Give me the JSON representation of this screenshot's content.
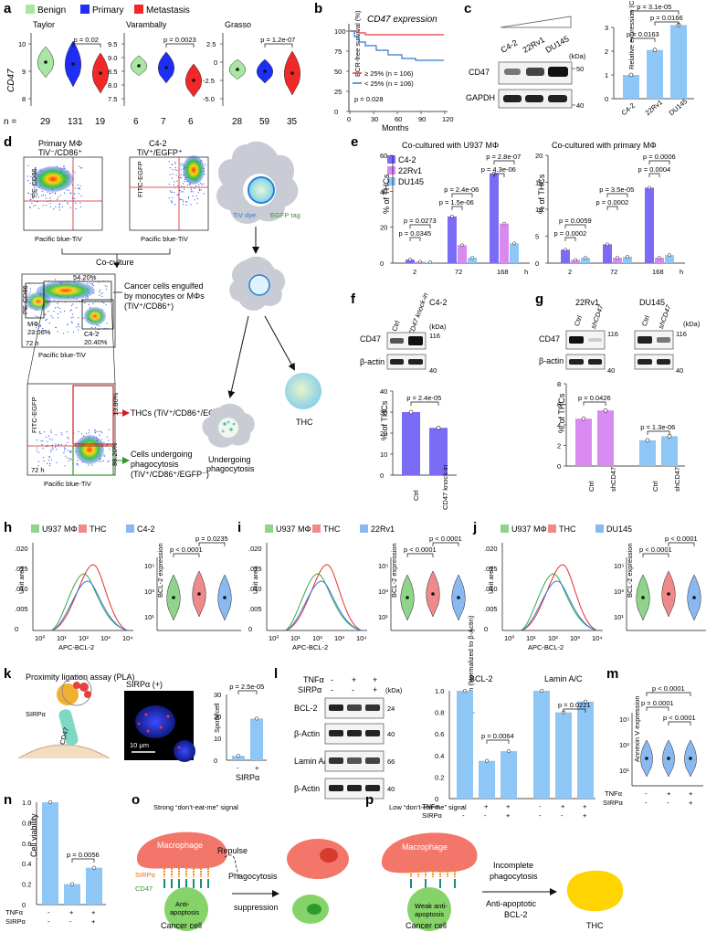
{
  "panels": {
    "a": {
      "label": "a",
      "legend": [
        "Benign",
        "Primary",
        "Metastasis"
      ],
      "ylabel": "CD47",
      "n_label": "n =",
      "datasets": [
        {
          "name": "Taylor",
          "p": "p = 0.02",
          "n": [
            "29",
            "131",
            "19"
          ],
          "yticks": [
            "10",
            "9",
            "8"
          ]
        },
        {
          "name": "Varambally",
          "p": "p = 0.0023",
          "n": [
            "6",
            "7",
            "6"
          ],
          "yticks": [
            "9.5",
            "9.0",
            "8.5",
            "8.0",
            "7.5"
          ]
        },
        {
          "name": "Grasso",
          "p": "p = 1.2e-07",
          "n": [
            "28",
            "59",
            "35"
          ],
          "yticks": [
            "2.5",
            "0",
            "-2.5",
            "-5.0"
          ]
        }
      ]
    },
    "b": {
      "label": "b",
      "title": "CD47 expression",
      "ylabel": "BCR-free survival (%)",
      "xlabel": "Months",
      "yticks": [
        "100",
        "75",
        "50",
        "25",
        "0"
      ],
      "xticks": [
        "0",
        "30",
        "60",
        "90",
        "120"
      ],
      "legend_high": "≥ 25% (n = 106)",
      "legend_low": "< 25% (n = 106)",
      "p": "p = 0.028"
    },
    "c": {
      "label": "c",
      "lanes": [
        "C4-2",
        "22Rv1",
        "DU145"
      ],
      "kda": "(kDa)",
      "blots": [
        "CD47",
        "GAPDH"
      ],
      "mw": [
        "50",
        "40"
      ],
      "ylabel": "Relative expression (CD47/GAPDH)",
      "yticks": [
        "3",
        "2",
        "1",
        "0"
      ],
      "p_top": "p = 3.1e-05",
      "p_mid": "p = 0.0166",
      "p_low": "p = 0.0163"
    },
    "d": {
      "label": "d",
      "plot1_title1": "Primary MΦ",
      "plot1_title2": "TiV⁻/CD86⁺",
      "plot2_title1": "C4-2",
      "plot2_title2": "TiV⁺/EGFP⁺",
      "y_pe": "PE-CD86",
      "y_fitc": "FITC-EGFP",
      "x_pb": "Pacific blue-TiV",
      "coculture": "Co-culture",
      "gate_top": "54.20%",
      "gate_mphi": "MΦ",
      "gate_mphi_pct": "23.06%",
      "gate_c42": "C4-2",
      "gate_c42_pct": "20.40%",
      "time": "72 h",
      "engulf_text": [
        "Cancer cells engulfed",
        "by monocytes or MΦs",
        "(TiV⁺/CD86⁺)"
      ],
      "q_top": "13.80%",
      "q_bot": "86.20%",
      "thc_text": "THCs (TiV⁺/CD86⁺/EGFP⁺)",
      "phago_text": [
        "Cells undergoing",
        "phagocytosis",
        "(TiV⁺/CD86⁺/EGFP⁻)"
      ],
      "tiv_dye": "TiV dye",
      "egfp_tag": "EGFP tag",
      "thc": "THC",
      "undergoing": [
        "Undergoing",
        "phagocytosis"
      ]
    },
    "e": {
      "label": "e",
      "left_title": "Co-cultured with U937 MΦ",
      "right_title": "Co-cultured with primary MΦ",
      "legend": [
        "C4-2",
        "22Rv1",
        "DU145"
      ],
      "ylabel": "% of THCs",
      "left_yticks": [
        "60",
        "40",
        "20",
        "0"
      ],
      "right_yticks": [
        "20",
        "15",
        "10",
        "5",
        "0"
      ],
      "xticks": [
        "2",
        "72",
        "168"
      ],
      "unit": "h",
      "left_p": [
        "p = 0.0273",
        "p = 0.0345",
        "p = 2.4e-06",
        "p = 1.5e-06",
        "p = 2.8e-07",
        "p = 4.3e-06"
      ],
      "right_p": [
        "p = 0.0059",
        "p = 0.0002",
        "p = 3.5e-05",
        "p = 0.0002",
        "p = 0.0006",
        "p = 0.0004"
      ]
    },
    "f": {
      "label": "f",
      "title": "C4-2",
      "lanes": [
        "Ctrl",
        "CD47 knock-in"
      ],
      "kda": "(kDa)",
      "blots": [
        "CD47",
        "β-actin"
      ],
      "mw": [
        "116",
        "40"
      ],
      "ylabel": "% of THCs",
      "yticks": [
        "40",
        "30",
        "20",
        "10",
        "0"
      ],
      "p": "p = 2.4e-05",
      "xlabels": [
        "Ctrl",
        "CD47 knock-in"
      ]
    },
    "g": {
      "label": "g",
      "title1": "22Rv1",
      "title2": "DU145",
      "lanes": [
        "Ctrl",
        "shCD47"
      ],
      "kda": "(kDa)",
      "blots": [
        "CD47",
        "β-actin"
      ],
      "mw": [
        "116",
        "40"
      ],
      "ylabel": "% of THCs",
      "yticks": [
        "8",
        "6",
        "4",
        "2",
        "0"
      ],
      "p1": "p = 0.0426",
      "p2": "p = 1.3e-06",
      "xlabels": [
        "Ctrl",
        "shCD47",
        "Ctrl",
        "shCD47"
      ]
    },
    "h": {
      "label": "h",
      "legend": [
        "U937 MΦ",
        "THC",
        "C4-2"
      ],
      "p1": "p < 0.0001",
      "p2": "p = 0.0235"
    },
    "i": {
      "label": "i",
      "legend": [
        "U937 MΦ",
        "THC",
        "22Rv1"
      ],
      "p1": "p < 0.0001",
      "p2": "p < 0.0001"
    },
    "j": {
      "label": "j",
      "legend": [
        "U937 MΦ",
        "THC",
        "DU145"
      ],
      "p1": "p < 0.0001",
      "p2": "p < 0.0001"
    },
    "hist_common": {
      "ylabel": "Unit area",
      "xlabel": "APC-BCL-2",
      "violin_ylabel": "BCL-2 expression",
      "yticks": [
        ".020",
        ".015",
        ".010",
        ".005",
        "0"
      ],
      "xticks": [
        "10⁰",
        "10¹",
        "10²",
        "10³",
        "10⁴"
      ],
      "vyticks": [
        "10⁵",
        "10³",
        "10¹"
      ]
    },
    "k": {
      "label": "k",
      "title": "Proximity ligation assay (PLA)",
      "sirpa": "SIRPα",
      "cd47": "CD47",
      "img_label": "SIRPα (+)",
      "scale": "10 μm",
      "p": "p = 2.5e-05",
      "ylabel": "Spots/cell",
      "yticks": [
        "30",
        "20",
        "10",
        "0"
      ],
      "xlabel": "SIRPα",
      "xticks": [
        "-",
        "+"
      ]
    },
    "l": {
      "label": "l",
      "row_tnf": "TNFα",
      "row_sirpa": "SIRPα",
      "tnf": [
        "-",
        "+",
        "+"
      ],
      "sirpa_vals": [
        "-",
        "-",
        "+"
      ],
      "kda": "(kDa)",
      "blots": [
        "BCL-2",
        "β-Actin",
        "Lamin A/C",
        "β-Actin"
      ],
      "mw": [
        "24",
        "40",
        "66",
        "40"
      ],
      "ylabel": "Relative expression (Normalized to β-Actin)",
      "yticks": [
        "1.0",
        "0.8",
        "0.6",
        "0.4",
        "0.2",
        "0"
      ],
      "bcl2": "BCL-2",
      "lamin": "Lamin A/C",
      "p1": "p = 0.0064",
      "p2": "p = 0.0221"
    },
    "m": {
      "label": "m",
      "ylabel": "Annexin V expression",
      "yticks": [
        "10⁵",
        "10³",
        "10¹"
      ],
      "p_top": "p < 0.0001",
      "p_a": "p = 0.0001",
      "p_b": "p < 0.0001",
      "row_tnf": "TNFα",
      "row_sirpa": "SIRPα",
      "tnf": [
        "-",
        "+",
        "+"
      ],
      "sirpa_vals": [
        "-",
        "-",
        "+"
      ]
    },
    "n": {
      "label": "n",
      "ylabel": "Cell viability",
      "yticks": [
        "1.0",
        "0.8",
        "0.6",
        "0.4",
        "0.2",
        "0"
      ],
      "p": "p = 0.0056",
      "row_tnf": "TNFα",
      "row_sirpa": "SIRPα",
      "tnf": [
        "-",
        "+",
        "+"
      ],
      "sirpa_vals": [
        "-",
        "-",
        "+"
      ]
    },
    "o": {
      "label": "o",
      "title": "Strong “don’t-eat-me” signal",
      "macrophage": "Macrophage",
      "repulse": "Repulse",
      "sirpa": "SIRPα",
      "cd47": "CD47",
      "anti": [
        "Anti-",
        "apoptosis"
      ],
      "cancer": "Cancer cell",
      "arrow": [
        "Phagocytosis",
        "suppression"
      ]
    },
    "p": {
      "label": "p",
      "title": "Low “don’t-eat-me” signal",
      "macrophage": "Macrophage",
      "weak": [
        "Weak anti-",
        "apoptosis"
      ],
      "cancer": "Cancer cell",
      "arrow_top": [
        "Incomplete",
        "phagocytosis"
      ],
      "arrow_bottom": [
        "Anti-apoptotic",
        "BCL-2"
      ],
      "thc": "THC"
    }
  },
  "colors": {
    "benign": "#a8e6a1",
    "primary": "#1f2ef5",
    "metastasis": "#f0282a",
    "c42": "#7b6cf6",
    "rv1": "#d88af0",
    "du145": "#8ec6f5",
    "bar": "#8ec6f5",
    "green": "#8fd48a",
    "red": "#f08a8a",
    "blue": "#8ab8f0"
  }
}
